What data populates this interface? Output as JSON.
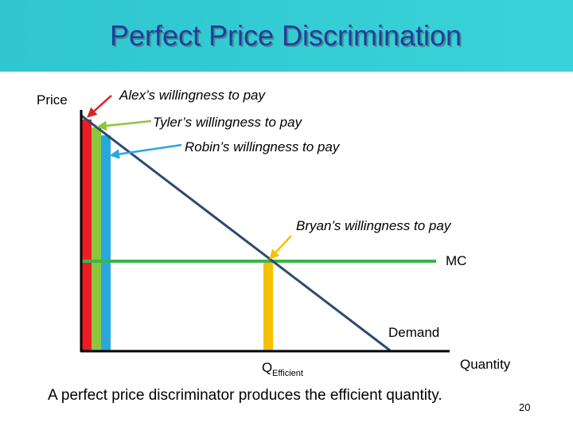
{
  "header": {
    "title": "Perfect Price Discrimination"
  },
  "diagram": {
    "y_axis_label": "Price",
    "x_axis_label": "Quantity",
    "annotations": {
      "alex": "Alex’s willingness to pay",
      "tyler": "Tyler’s willingness to pay",
      "robin": "Robin’s willingness to pay",
      "bryan": "Bryan’s willingness to pay"
    },
    "mc_label": "MC",
    "demand_label": "Demand",
    "quantity_marker": {
      "symbol": "Q",
      "subscript": "Efficient"
    }
  },
  "caption": "A perfect price discriminator produces the efficient quantity.",
  "slide_number": "20"
}
